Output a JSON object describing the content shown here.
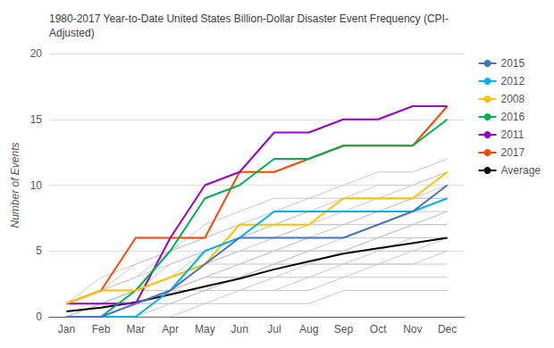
{
  "chart_data": {
    "type": "line",
    "title": "1980-2017 Year-to-Date United States Billion-Dollar Disaster Event Frequency (CPI-\nAdjusted)",
    "ylabel": "Number of Events",
    "categories": [
      "Jan",
      "Feb",
      "Mar",
      "Apr",
      "May",
      "Jun",
      "Jul",
      "Aug",
      "Sep",
      "Oct",
      "Nov",
      "Dec"
    ],
    "series": [
      {
        "name": "2015",
        "color": "#4472C4",
        "values": [
          0,
          0,
          1,
          2,
          4,
          6,
          6,
          6,
          6,
          7,
          8,
          10
        ]
      },
      {
        "name": "2012",
        "color": "#00B0F0",
        "values": [
          0,
          0,
          0,
          2,
          5,
          6,
          8,
          8,
          8,
          8,
          8,
          9
        ]
      },
      {
        "name": "2008",
        "color": "#FFC000",
        "values": [
          1,
          2,
          2,
          3,
          4,
          7,
          7,
          7,
          9,
          9,
          9,
          11
        ]
      },
      {
        "name": "2016",
        "color": "#00B050",
        "values": [
          0,
          0,
          2,
          5,
          9,
          10,
          12,
          12,
          13,
          13,
          13,
          15
        ]
      },
      {
        "name": "2011",
        "color": "#9900CC",
        "values": [
          1,
          1,
          1,
          6,
          10,
          11,
          14,
          14,
          15,
          15,
          16,
          16
        ]
      },
      {
        "name": "2017",
        "color": "#FF4500",
        "values": [
          1,
          2,
          6,
          6,
          6,
          11,
          11,
          12,
          13,
          13,
          13,
          16
        ]
      },
      {
        "name": "Average",
        "color": "#000000",
        "values": [
          0.4,
          0.7,
          1.1,
          1.7,
          2.3,
          2.9,
          3.6,
          4.2,
          4.8,
          5.2,
          5.6,
          6.0
        ]
      },
      {
        "color": "#C8C8C8",
        "values": [
          0,
          0,
          0,
          0,
          1,
          1,
          1,
          1,
          2,
          2,
          2,
          2
        ]
      },
      {
        "color": "#C8C8C8",
        "values": [
          0,
          0,
          0,
          1,
          1,
          2,
          2,
          2,
          3,
          3,
          3,
          3
        ]
      },
      {
        "color": "#C8C8C8",
        "values": [
          0,
          0,
          1,
          1,
          2,
          2,
          2,
          3,
          3,
          4,
          4,
          4
        ]
      },
      {
        "color": "#C8C8C8",
        "values": [
          0,
          0,
          1,
          1,
          2,
          2,
          3,
          3,
          4,
          4,
          4,
          5
        ]
      },
      {
        "color": "#C8C8C8",
        "values": [
          0,
          0,
          1,
          2,
          2,
          3,
          3,
          4,
          4,
          4,
          5,
          5
        ]
      },
      {
        "color": "#C8C8C8",
        "values": [
          0,
          1,
          1,
          2,
          2,
          3,
          4,
          4,
          4,
          5,
          5,
          6
        ]
      },
      {
        "color": "#C8C8C8",
        "values": [
          0,
          1,
          1,
          2,
          3,
          3,
          4,
          4,
          5,
          5,
          6,
          6
        ]
      },
      {
        "color": "#C8C8C8",
        "values": [
          0,
          1,
          1,
          2,
          3,
          3,
          4,
          5,
          5,
          6,
          6,
          6
        ]
      },
      {
        "color": "#C8C8C8",
        "values": [
          0,
          1,
          2,
          2,
          3,
          4,
          4,
          5,
          5,
          6,
          7,
          7
        ]
      },
      {
        "color": "#C8C8C8",
        "values": [
          0,
          1,
          2,
          2,
          3,
          4,
          5,
          5,
          5,
          6,
          7,
          7
        ]
      },
      {
        "color": "#C8C8C8",
        "values": [
          0,
          1,
          2,
          3,
          4,
          4,
          5,
          5,
          6,
          6,
          7,
          8
        ]
      },
      {
        "color": "#C8C8C8",
        "values": [
          0,
          1,
          2,
          3,
          4,
          5,
          5,
          6,
          6,
          7,
          7,
          8
        ]
      },
      {
        "color": "#C8C8C8",
        "values": [
          0,
          1,
          2,
          3,
          4,
          5,
          5,
          6,
          7,
          7,
          8,
          8
        ]
      },
      {
        "color": "#C8C8C8",
        "values": [
          0,
          1,
          2,
          3,
          4,
          5,
          6,
          7,
          7,
          8,
          8,
          9
        ]
      },
      {
        "color": "#C8C8C8",
        "values": [
          0,
          1,
          2,
          3,
          5,
          6,
          6,
          7,
          7,
          8,
          9,
          9
        ]
      },
      {
        "color": "#C8C8C8",
        "values": [
          1,
          1,
          2,
          4,
          5,
          6,
          7,
          7,
          8,
          8,
          9,
          9
        ]
      },
      {
        "color": "#C8C8C8",
        "values": [
          1,
          2,
          3,
          4,
          5,
          6,
          7,
          8,
          8,
          9,
          9,
          10
        ]
      },
      {
        "color": "#C8C8C8",
        "values": [
          1,
          2,
          3,
          5,
          6,
          7,
          7,
          8,
          9,
          9,
          10,
          11
        ]
      },
      {
        "color": "#C8C8C8",
        "values": [
          1,
          2,
          4,
          5,
          6,
          7,
          8,
          9,
          9,
          10,
          10,
          11
        ]
      },
      {
        "color": "#C8C8C8",
        "values": [
          1,
          3,
          4,
          5,
          7,
          8,
          9,
          9,
          10,
          11,
          11,
          12
        ]
      }
    ],
    "ylim": [
      0,
      20
    ],
    "yticks": [
      0,
      5,
      10,
      15,
      20
    ],
    "grid": true,
    "legend": "right"
  }
}
